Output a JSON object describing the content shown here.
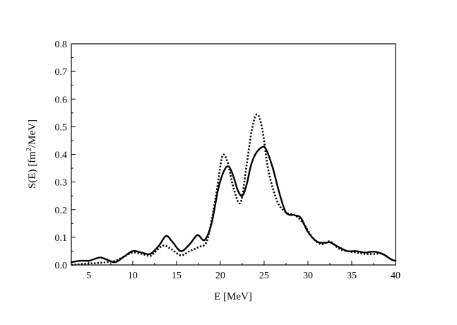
{
  "chart_data": {
    "type": "line",
    "xlabel": "E [MeV]",
    "ylabel_main": "S(E) [fm",
    "ylabel_sup": "2",
    "ylabel_rest": "/MeV]",
    "xlim": [
      3,
      40
    ],
    "ylim": [
      0.0,
      0.8
    ],
    "xticks": [
      5,
      10,
      15,
      20,
      25,
      30,
      35,
      40
    ],
    "xtick_labels": [
      "5",
      "10",
      "15",
      "20",
      "25",
      "30",
      "35",
      "40"
    ],
    "yticks": [
      0.0,
      0.1,
      0.2,
      0.3,
      0.4,
      0.5,
      0.6,
      0.7,
      0.8
    ],
    "ytick_labels": [
      "0.0",
      "0.1",
      "0.2",
      "0.3",
      "0.4",
      "0.5",
      "0.6",
      "0.7",
      "0.8"
    ],
    "grid": false,
    "legend": "none",
    "series": [
      {
        "style": "solid",
        "color": "#000000",
        "x": [
          3,
          4,
          5,
          5.5,
          6.3,
          7,
          8,
          9,
          10,
          11,
          12,
          13,
          13.8,
          14.5,
          15.5,
          16.5,
          17.4,
          18.2,
          19,
          19.8,
          20.5,
          21,
          21.5,
          22,
          22.5,
          23,
          23.5,
          24,
          24.7,
          25.2,
          26,
          26.7,
          27.5,
          28.5,
          29.2,
          30,
          31,
          32,
          32.5,
          33.5,
          34.5,
          35.5,
          36.5,
          37.5,
          38.5,
          39.5,
          40
        ],
        "y": [
          0.01,
          0.015,
          0.015,
          0.02,
          0.027,
          0.02,
          0.01,
          0.03,
          0.05,
          0.045,
          0.04,
          0.07,
          0.105,
          0.085,
          0.05,
          0.075,
          0.108,
          0.09,
          0.15,
          0.28,
          0.345,
          0.355,
          0.32,
          0.27,
          0.25,
          0.29,
          0.36,
          0.4,
          0.425,
          0.42,
          0.35,
          0.265,
          0.19,
          0.18,
          0.17,
          0.12,
          0.085,
          0.08,
          0.082,
          0.065,
          0.05,
          0.05,
          0.045,
          0.048,
          0.04,
          0.02,
          0.015
        ]
      },
      {
        "style": "dotted",
        "color": "#000000",
        "x": [
          3,
          4,
          5,
          6,
          7,
          8,
          9,
          10,
          11,
          12,
          12.5,
          13.5,
          14.5,
          15.5,
          16.5,
          17.5,
          18.5,
          19.5,
          20.2,
          20.8,
          21.5,
          22.3,
          23,
          23.6,
          24.2,
          24.8,
          25.5,
          26.5,
          27.5,
          28.5,
          29.5,
          30.5,
          31.5,
          32.5,
          33.5,
          34.5,
          35.5,
          36.5,
          37.5,
          38.5,
          39.5,
          40
        ],
        "y": [
          0.0,
          0.003,
          0.005,
          0.007,
          0.01,
          0.015,
          0.03,
          0.045,
          0.04,
          0.033,
          0.045,
          0.07,
          0.055,
          0.035,
          0.05,
          0.065,
          0.09,
          0.25,
          0.39,
          0.375,
          0.28,
          0.225,
          0.36,
          0.49,
          0.545,
          0.49,
          0.34,
          0.23,
          0.19,
          0.18,
          0.15,
          0.1,
          0.075,
          0.085,
          0.06,
          0.05,
          0.045,
          0.04,
          0.04,
          0.04,
          0.02,
          0.015
        ]
      }
    ]
  }
}
